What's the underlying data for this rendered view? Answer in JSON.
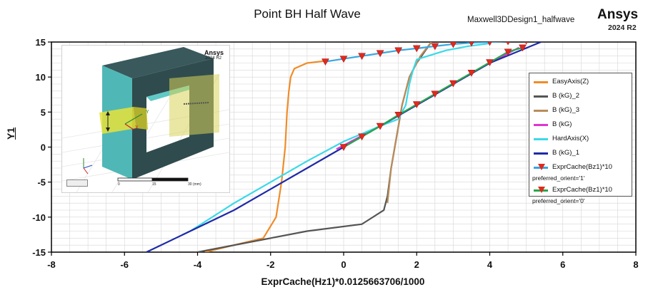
{
  "chart_data": {
    "type": "line",
    "title": "Point BH Half Wave",
    "subtitle": "Maxwell3DDesign1_halfwave",
    "brand": "Ansys",
    "brand_version": "2024 R2",
    "xlabel": "ExprCache(Hz1)*0.0125663706/1000",
    "ylabel": "Y1",
    "xlim": [
      -8,
      8
    ],
    "ylim": [
      -15,
      15
    ],
    "xticks": [
      -8,
      -6,
      -4,
      -2,
      0,
      2,
      4,
      6,
      8
    ],
    "yticks": [
      -15,
      -10,
      -5,
      0,
      5,
      10,
      15
    ],
    "grid": true,
    "legend_position": "right",
    "series": [
      {
        "name": "EasyAxis(Z)",
        "color": "#f08c28",
        "marker": "none",
        "x": [
          -3.8,
          -2.2,
          -1.85,
          -1.7,
          -1.6,
          -1.55,
          -1.5,
          -1.45,
          -1.35,
          -1.0,
          -0.5
        ],
        "y": [
          -15,
          -13,
          -10,
          -5,
          0,
          5,
          8,
          10,
          11.2,
          12,
          12.3
        ]
      },
      {
        "name": "B (kG)_2",
        "color": "#555555",
        "marker": "none",
        "x": [
          -4,
          -1,
          0.5,
          1.1,
          1.2,
          1.3,
          1.4,
          1.5,
          1.6,
          1.8,
          2.0,
          2.2,
          2.4
        ],
        "y": [
          -15,
          -12,
          -11,
          -9,
          -7,
          -3,
          0,
          3,
          6,
          10,
          12,
          13.5,
          15
        ]
      },
      {
        "name": "B (kG)_3",
        "color": "#b98c5a",
        "marker": "none",
        "x": [
          1.2,
          1.3,
          1.4,
          1.5,
          1.6,
          1.8,
          2.1,
          2.4
        ],
        "y": [
          -8,
          -3,
          0,
          3,
          6,
          10,
          13,
          15
        ]
      },
      {
        "name": "B (kG)",
        "color": "#e034d0",
        "marker": "none",
        "x": [
          -0.2,
          1,
          2,
          3,
          4,
          4.8
        ],
        "y": [
          -0.3,
          3,
          6,
          9,
          12,
          14.2
        ]
      },
      {
        "name": "HardAxis(X)",
        "color": "#3ad9e8",
        "marker": "none",
        "x": [
          -4.2,
          -3,
          -2,
          -1,
          0,
          1,
          1.5,
          1.7,
          1.8,
          1.9,
          2.0,
          2.3,
          2.8,
          3.4,
          4.0
        ],
        "y": [
          -12,
          -8,
          -5,
          -2,
          0.8,
          3,
          4,
          6,
          9,
          11,
          12.5,
          13,
          13.8,
          14.4,
          14.8
        ]
      },
      {
        "name": "B (kG)_1",
        "color": "#1e2aa8",
        "marker": "none",
        "x": [
          -5.4,
          -3,
          -1,
          0,
          1,
          2,
          3,
          4,
          5.4
        ],
        "y": [
          -15,
          -9,
          -3,
          0,
          3,
          6,
          9,
          12,
          15
        ]
      },
      {
        "name": "ExprCache(Bz1)*10",
        "name2": "preferred_orient='1'",
        "color": "#3aa6e0",
        "marker": "triangle",
        "x": [
          -0.5,
          0,
          0.5,
          1.0,
          1.5,
          2.0,
          2.5,
          3.0,
          3.5,
          4.0,
          4.5,
          5.0
        ],
        "y": [
          12.2,
          12.6,
          13.0,
          13.4,
          13.8,
          14.1,
          14.4,
          14.7,
          14.9,
          15.0,
          15.1,
          15.2
        ]
      },
      {
        "name": "ExprCache(Bz1)*10",
        "name2": "preferred_orient='0'",
        "color": "#2aa64a",
        "marker": "triangle",
        "x": [
          0,
          0.5,
          1.0,
          1.5,
          2.0,
          2.5,
          3.0,
          3.5,
          4.0,
          4.5,
          4.9
        ],
        "y": [
          0,
          1.5,
          3.0,
          4.6,
          6.1,
          7.6,
          9.1,
          10.6,
          12.1,
          13.6,
          14.2
        ]
      }
    ]
  },
  "inset": {
    "brand": "Ansys",
    "version": "2024 R2",
    "axis_y": "Y",
    "axis_x": "X",
    "scale_0": "0",
    "scale_1": "15",
    "scale_2": "30 (mm)"
  }
}
